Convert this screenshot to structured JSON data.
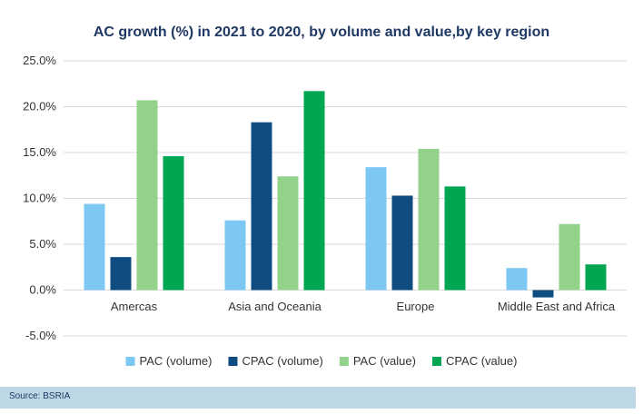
{
  "chart_data": {
    "type": "bar",
    "title": "AC growth (%) in 2021 to 2020, by volume and value,by key region",
    "categories": [
      "Amercas",
      "Asia and Oceania",
      "Europe",
      "Middle East and Africa"
    ],
    "series": [
      {
        "name": "PAC (volume)",
        "color": "#7dc8f2",
        "values": [
          9.4,
          7.6,
          13.4,
          2.4
        ]
      },
      {
        "name": "CPAC (volume)",
        "color": "#0f4c81",
        "values": [
          3.6,
          18.3,
          10.3,
          -0.8
        ]
      },
      {
        "name": "PAC (value)",
        "color": "#92d28a",
        "values": [
          20.7,
          12.4,
          15.4,
          7.2
        ]
      },
      {
        "name": "CPAC (value)",
        "color": "#00a651",
        "values": [
          14.6,
          21.7,
          11.3,
          2.8
        ]
      }
    ],
    "ylim": [
      -5,
      25
    ],
    "yticks": [
      25,
      20,
      15,
      10,
      5,
      0,
      -5
    ],
    "ytick_labels": [
      "25.0%",
      "20.0%",
      "15.0%",
      "10.0%",
      "5.0%",
      "0.0%",
      "-5.0%"
    ],
    "grid": true,
    "legend": "bottom"
  },
  "source": {
    "text": "Source: BSRIA"
  },
  "colors": {
    "title": "#1f3864",
    "grid": "#d9d9d9",
    "source_bar": "#bdd7e4"
  }
}
